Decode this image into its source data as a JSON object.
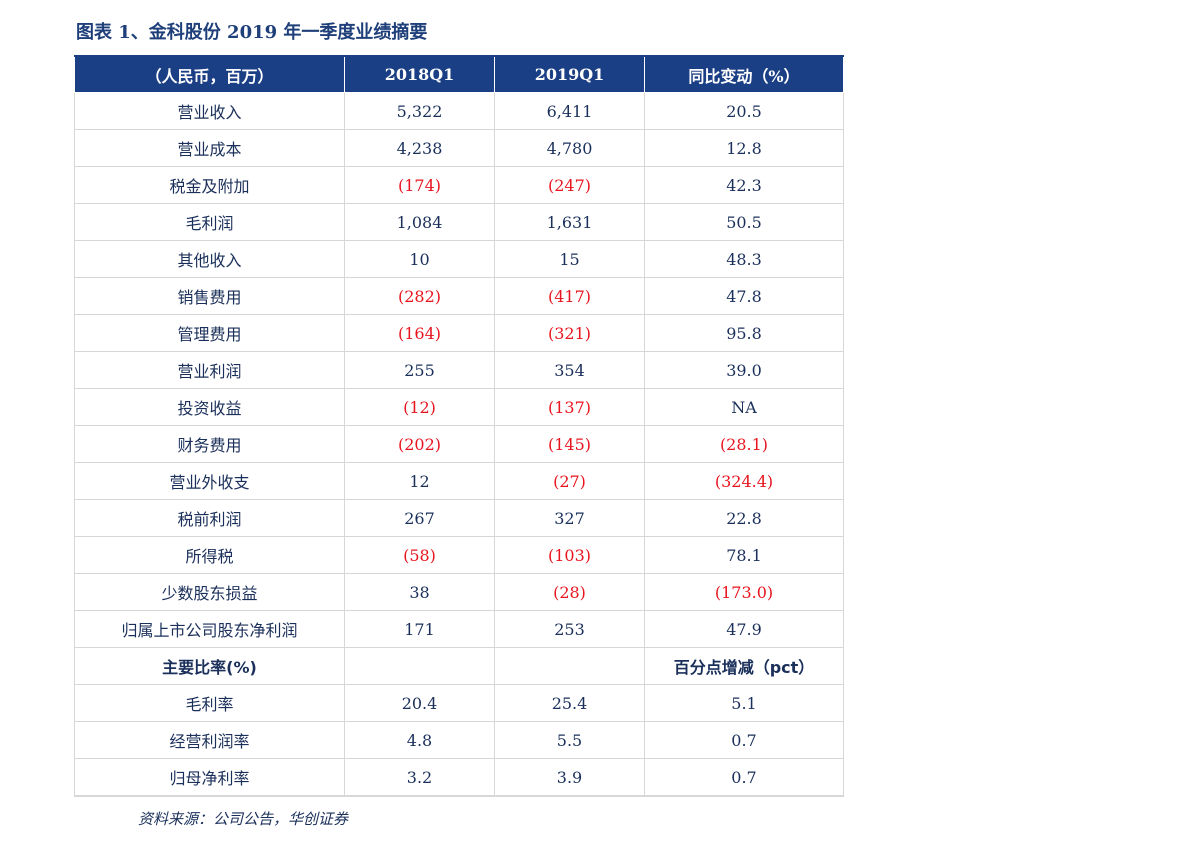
{
  "title": "图表 1、金科股份 2019 年一季度业绩摘要",
  "table": {
    "headers": [
      "（人民币，百万）",
      "2018Q1",
      "2019Q1",
      "同比变动（%）"
    ],
    "rows": [
      [
        "营业收入",
        "5,322",
        "6,411",
        "20.5"
      ],
      [
        "营业成本",
        "4,238",
        "4,780",
        "12.8"
      ],
      [
        "税金及附加",
        "(174)",
        "(247)",
        "42.3"
      ],
      [
        "毛利润",
        "1,084",
        "1,631",
        "50.5"
      ],
      [
        "其他收入",
        "10",
        "15",
        "48.3"
      ],
      [
        "销售费用",
        "(282)",
        "(417)",
        "47.8"
      ],
      [
        "管理费用",
        "(164)",
        "(321)",
        "95.8"
      ],
      [
        "营业利润",
        "255",
        "354",
        "39.0"
      ],
      [
        "投资收益",
        "(12)",
        "(137)",
        "NA"
      ],
      [
        "财务费用",
        "(202)",
        "(145)",
        "(28.1)"
      ],
      [
        "营业外收支",
        "12",
        "(27)",
        "(324.4)"
      ],
      [
        "税前利润",
        "267",
        "327",
        "22.8"
      ],
      [
        "所得税",
        "(58)",
        "(103)",
        "78.1"
      ],
      [
        "少数股东损益",
        "38",
        "(28)",
        "(173.0)"
      ],
      [
        "归属上市公司股东净利润",
        "171",
        "253",
        "47.9"
      ],
      [
        "主要比率(%)",
        "",
        "",
        "百分点增减（pct）"
      ],
      [
        "毛利率",
        "20.4",
        "25.4",
        "5.1"
      ],
      [
        "经营利润率",
        "4.8",
        "5.5",
        "0.7"
      ],
      [
        "归母净利率",
        "3.2",
        "3.9",
        "0.7"
      ]
    ]
  },
  "colors": {
    "header_bg": "#1b3f85",
    "text": "#1a2f5a",
    "negative": "#e8141e",
    "title": "#1f3f7a"
  },
  "source": "资料来源：公司公告，华创证券"
}
